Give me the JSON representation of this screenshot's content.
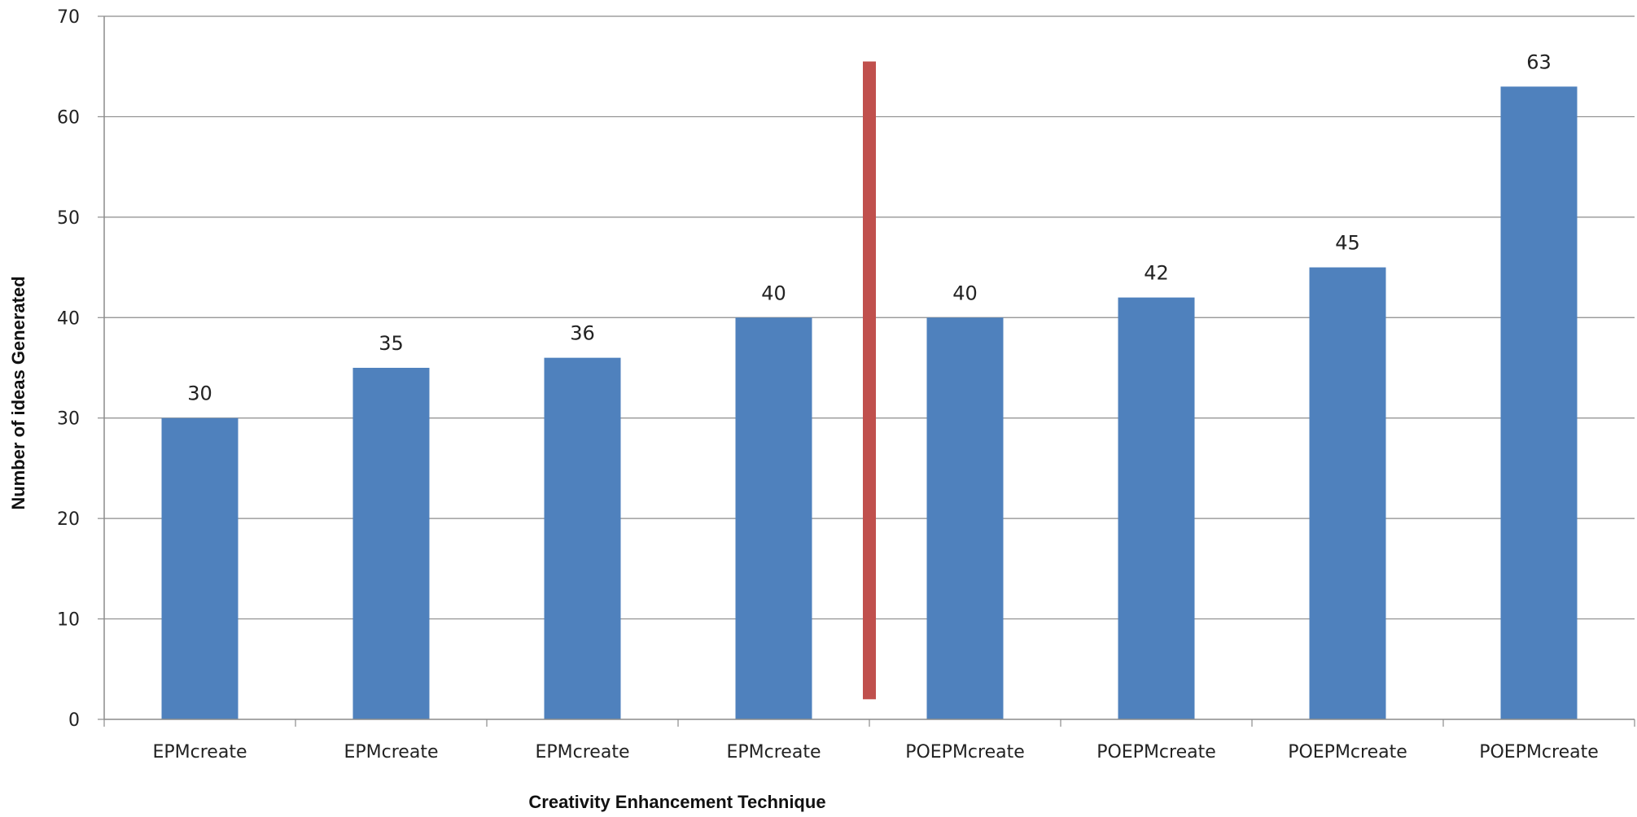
{
  "chart_data": {
    "type": "bar",
    "title": "",
    "xlabel": "Creativity Enhancement Technique",
    "ylabel": "Number of ideas Generated",
    "categories": [
      "EPMcreate",
      "EPMcreate",
      "EPMcreate",
      "EPMcreate",
      "POEPMcreate",
      "POEPMcreate",
      "POEPMcreate",
      "POEPMcreate"
    ],
    "values": [
      30,
      35,
      36,
      40,
      40,
      42,
      45,
      63
    ],
    "data_labels": [
      "30",
      "35",
      "36",
      "40",
      "40",
      "42",
      "45",
      "63"
    ],
    "ylim": [
      0,
      70
    ],
    "yticks": [
      0,
      10,
      20,
      30,
      40,
      50,
      60,
      70
    ],
    "ytick_labels": [
      "0",
      "10",
      "20",
      "30",
      "40",
      "50",
      "60",
      "70"
    ],
    "grid": true,
    "legend": "none",
    "bar_color": "#4f81bd",
    "separator": {
      "after_category_index": 3,
      "y_from": 2,
      "y_to": 65.5,
      "color": "#c0504d"
    }
  }
}
